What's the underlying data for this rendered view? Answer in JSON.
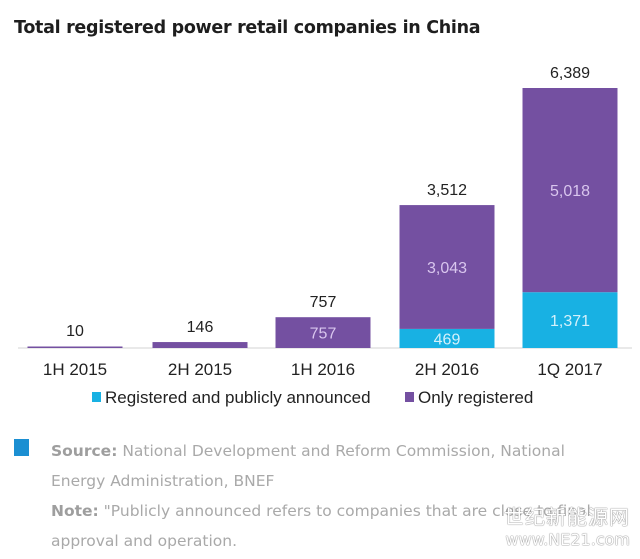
{
  "chart_data": {
    "type": "bar",
    "stacked": true,
    "title": "Total registered power retail companies in China",
    "categories": [
      "1H 2015",
      "2H 2015",
      "1H 2016",
      "2H 2016",
      "1Q 2017"
    ],
    "series": [
      {
        "name": "Registered and publicly announced",
        "color": "#18b1e3",
        "values": [
          0,
          0,
          0,
          469,
          1371
        ]
      },
      {
        "name": "Only registered",
        "color": "#7450a1",
        "values": [
          10,
          146,
          757,
          3043,
          5018
        ]
      }
    ],
    "totals": [
      10,
      146,
      757,
      3512,
      6389
    ],
    "segment_labels": {
      "Registered and publicly announced": [
        "",
        "",
        "",
        "469",
        "1,371"
      ],
      "Only registered": [
        "",
        "",
        "757",
        "3,043",
        "5,018"
      ]
    },
    "total_labels": [
      "10",
      "146",
      "757",
      "3,512",
      "6,389"
    ],
    "xlabel": "",
    "ylabel": "",
    "ylim": [
      0,
      6389
    ],
    "grid": false,
    "legend": "bottom"
  },
  "source": {
    "source_label": "Source:",
    "source_text": " National Development and Reform Commission, National Energy Administration, BNEF",
    "note_label": "Note:",
    "note_text": " \"Publicly announced refers to companies that are close to final approval and operation."
  },
  "watermark": {
    "line1": "世纪新能源网",
    "line2": "www.NE21.com"
  }
}
